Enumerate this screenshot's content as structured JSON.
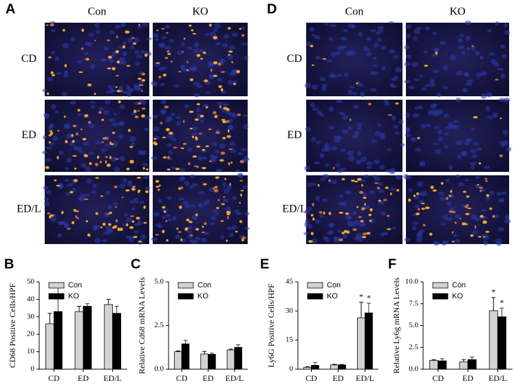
{
  "panels": [
    {
      "label": "A",
      "columns": [
        "Con",
        "KO"
      ],
      "rows": [
        "CD",
        "ED",
        "ED/L"
      ]
    },
    {
      "label": "D",
      "columns": [
        "Con",
        "KO"
      ],
      "rows": [
        "CD",
        "ED",
        "ED/L"
      ]
    }
  ],
  "chart_data": [
    {
      "type": "bar",
      "panel_label": "B",
      "ylabel": "CD68 Positive Cells/HPF",
      "categories": [
        "CD",
        "ED",
        "ED/L"
      ],
      "series": [
        {
          "name": "Con",
          "color": "#d3d3d3",
          "values": [
            26,
            33,
            37
          ],
          "errors": [
            6,
            3,
            3
          ]
        },
        {
          "name": "KO",
          "color": "#000000",
          "values": [
            33,
            36,
            32
          ],
          "errors": [
            14,
            1.5,
            4
          ]
        }
      ],
      "ylim": [
        0,
        50
      ],
      "yticks": [
        0,
        10,
        20,
        30,
        40,
        50
      ],
      "legend": "upper left"
    },
    {
      "type": "bar",
      "panel_label": "C",
      "ylabel": "Relative Cd68 mRNA Levels",
      "categories": [
        "CD",
        "ED",
        "ED/L"
      ],
      "series": [
        {
          "name": "Con",
          "color": "#d3d3d3",
          "values": [
            1.0,
            0.87,
            1.1
          ],
          "errors": [
            0.05,
            0.15,
            0.05
          ]
        },
        {
          "name": "KO",
          "color": "#000000",
          "values": [
            1.45,
            0.85,
            1.25
          ],
          "errors": [
            0.2,
            0.07,
            0.15
          ]
        }
      ],
      "ylim": [
        0,
        5
      ],
      "yticks": [
        {
          "value": 0,
          "label": "0.0"
        },
        {
          "value": 2.5,
          "label": "2.5"
        },
        {
          "value": 5,
          "label": "5.0"
        }
      ],
      "legend": "upper left"
    },
    {
      "type": "bar",
      "panel_label": "E",
      "ylabel": "Ly6G Positive Cells/HPF",
      "categories": [
        "CD",
        "ED",
        "ED/L"
      ],
      "series": [
        {
          "name": "Con",
          "color": "#d3d3d3",
          "values": [
            1,
            2.2,
            26.5
          ],
          "errors": [
            0.3,
            0.3,
            8
          ],
          "significance": [
            null,
            null,
            "*"
          ]
        },
        {
          "name": "KO",
          "color": "#000000",
          "values": [
            2,
            2.2,
            29
          ],
          "errors": [
            1.5,
            0.3,
            5
          ],
          "significance": [
            null,
            null,
            "*"
          ]
        }
      ],
      "ylim": [
        0,
        45
      ],
      "yticks": [
        0,
        15,
        30,
        45
      ],
      "legend": "upper left"
    },
    {
      "type": "bar",
      "panel_label": "F",
      "ylabel": "Relative Ly6g mRNA Levels",
      "categories": [
        "CD",
        "ED",
        "ED/L"
      ],
      "series": [
        {
          "name": "Con",
          "color": "#d3d3d3",
          "values": [
            1.0,
            0.85,
            6.7
          ],
          "errors": [
            0.1,
            0.25,
            1.5
          ],
          "significance": [
            null,
            null,
            "*"
          ]
        },
        {
          "name": "KO",
          "color": "#000000",
          "values": [
            0.95,
            1.1,
            6.0
          ],
          "errors": [
            0.25,
            0.3,
            1.0
          ],
          "significance": [
            null,
            null,
            "*"
          ]
        }
      ],
      "ylim": [
        0,
        10
      ],
      "yticks": [
        {
          "value": 0,
          "label": "0.0"
        },
        {
          "value": 2.5,
          "label": "2.5"
        },
        {
          "value": 5,
          "label": "5.0"
        },
        {
          "value": 7.5,
          "label": "7.5"
        },
        {
          "value": 10,
          "label": "10.0"
        }
      ],
      "legend": "upper left"
    }
  ]
}
